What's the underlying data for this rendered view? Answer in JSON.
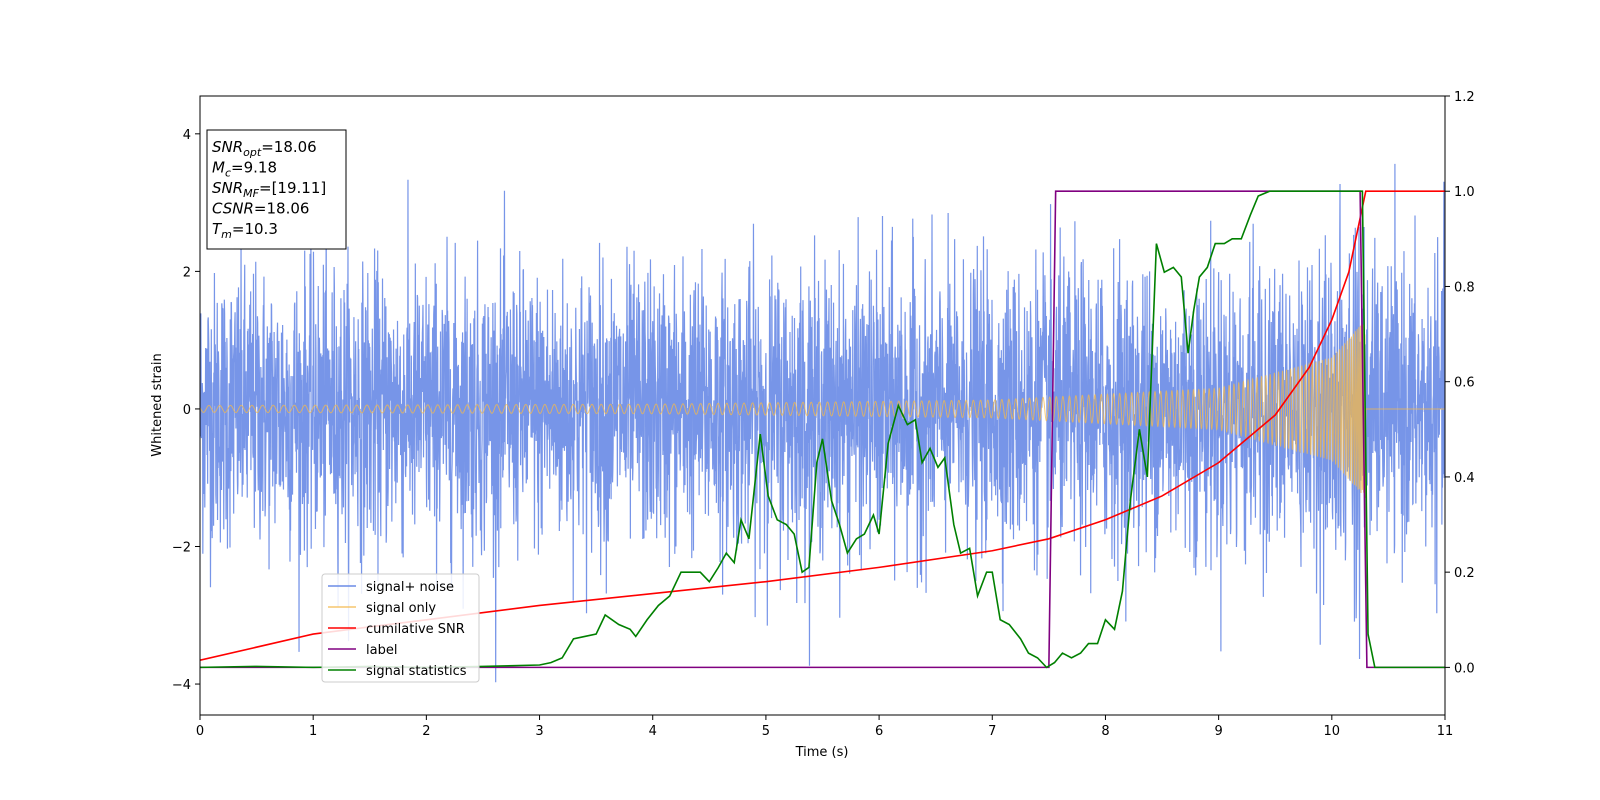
{
  "chart_data": {
    "type": "line",
    "xlabel": "Time (s)",
    "ylabel": "Whitened strain",
    "xlim": [
      0,
      11
    ],
    "ylim_left": [
      -4.45,
      4.55
    ],
    "ylim_right": [
      -0.1,
      1.2
    ],
    "xticks": [
      "0",
      "1",
      "2",
      "3",
      "4",
      "5",
      "6",
      "7",
      "8",
      "9",
      "10",
      "11"
    ],
    "yticks_left": [
      "4",
      "2",
      "0",
      "−2",
      "−4"
    ],
    "yticks_right": [
      "1.2",
      "1.0",
      "0.8",
      "0.6",
      "0.4",
      "0.2",
      "0.0"
    ],
    "legend_position": "lower-left",
    "annotation": {
      "lines": [
        {
          "sym": "SNR",
          "sub": "opt",
          "value": "=18.06"
        },
        {
          "sym": "M",
          "sub": "c",
          "value": "=9.18"
        },
        {
          "sym": "SNR",
          "sub": "MF",
          "value": "=[19.11]"
        },
        {
          "sym": "CSNR",
          "sub": "",
          "value": "=18.06"
        },
        {
          "sym": "T",
          "sub": "m",
          "value": "=10.3"
        }
      ]
    },
    "series": [
      {
        "name": "signal+ noise",
        "color": "#6b8ce6",
        "axis": "left",
        "description": "white noise std ~1 plus chirp, t 0–11"
      },
      {
        "name": "signal only",
        "color": "#f5b94a",
        "axis": "left",
        "chirp_amplitude": [
          [
            0,
            0.05
          ],
          [
            4,
            0.07
          ],
          [
            7,
            0.13
          ],
          [
            9,
            0.3
          ],
          [
            10,
            0.75
          ],
          [
            10.3,
            1.3
          ],
          [
            10.31,
            0
          ]
        ]
      },
      {
        "name": "cumilative SNR",
        "color": "#ff0000",
        "axis": "right",
        "x": [
          0,
          1,
          2,
          3,
          4,
          5,
          6,
          7,
          7.5,
          8,
          8.5,
          9,
          9.5,
          9.8,
          10,
          10.15,
          10.3,
          11
        ],
        "y": [
          0.015,
          0.07,
          0.1,
          0.13,
          0.155,
          0.18,
          0.21,
          0.245,
          0.27,
          0.31,
          0.36,
          0.43,
          0.53,
          0.63,
          0.73,
          0.83,
          1.0,
          1.0
        ]
      },
      {
        "name": "label",
        "color": "#800080",
        "axis": "right",
        "x": [
          0,
          7.5,
          7.56,
          10.25,
          10.31,
          11
        ],
        "y": [
          0,
          0,
          1,
          1,
          0,
          0
        ]
      },
      {
        "name": "signal statistics",
        "color": "#008000",
        "axis": "right",
        "x": [
          0,
          0.5,
          1,
          1.5,
          2,
          2.5,
          3,
          3.1,
          3.2,
          3.3,
          3.4,
          3.5,
          3.58,
          3.7,
          3.8,
          3.85,
          3.95,
          4.05,
          4.15,
          4.25,
          4.35,
          4.42,
          4.5,
          4.58,
          4.65,
          4.72,
          4.78,
          4.85,
          4.95,
          5.02,
          5.1,
          5.18,
          5.25,
          5.32,
          5.38,
          5.45,
          5.5,
          5.58,
          5.65,
          5.72,
          5.8,
          5.87,
          5.95,
          6.0,
          6.08,
          6.17,
          6.25,
          6.32,
          6.38,
          6.45,
          6.52,
          6.58,
          6.66,
          6.72,
          6.8,
          6.87,
          6.95,
          7.0,
          7.07,
          7.15,
          7.25,
          7.32,
          7.4,
          7.48,
          7.55,
          7.62,
          7.7,
          7.78,
          7.85,
          7.93,
          8.0,
          8.08,
          8.15,
          8.22,
          8.3,
          8.37,
          8.45,
          8.52,
          8.6,
          8.67,
          8.73,
          8.78,
          8.83,
          8.9,
          8.97,
          9.05,
          9.12,
          9.2,
          9.28,
          9.35,
          9.45,
          9.6,
          9.8,
          10.0,
          10.1,
          10.2,
          10.27,
          10.32,
          10.38,
          11
        ],
        "y": [
          0.0,
          0.002,
          0.0,
          0.002,
          0.0,
          0.002,
          0.005,
          0.01,
          0.02,
          0.06,
          0.065,
          0.07,
          0.11,
          0.09,
          0.08,
          0.065,
          0.1,
          0.13,
          0.15,
          0.2,
          0.2,
          0.2,
          0.18,
          0.21,
          0.24,
          0.22,
          0.31,
          0.27,
          0.49,
          0.36,
          0.31,
          0.3,
          0.28,
          0.2,
          0.21,
          0.43,
          0.48,
          0.35,
          0.3,
          0.24,
          0.27,
          0.28,
          0.32,
          0.28,
          0.47,
          0.55,
          0.51,
          0.52,
          0.43,
          0.46,
          0.42,
          0.44,
          0.3,
          0.24,
          0.25,
          0.15,
          0.2,
          0.2,
          0.1,
          0.09,
          0.06,
          0.03,
          0.02,
          0.0,
          0.01,
          0.03,
          0.02,
          0.03,
          0.05,
          0.05,
          0.1,
          0.08,
          0.16,
          0.35,
          0.5,
          0.4,
          0.89,
          0.83,
          0.84,
          0.82,
          0.66,
          0.75,
          0.82,
          0.84,
          0.89,
          0.89,
          0.9,
          0.9,
          0.95,
          0.99,
          1.0,
          1.0,
          1.0,
          1.0,
          1.0,
          1.0,
          1.0,
          0.07,
          0.0,
          0.0
        ]
      }
    ]
  }
}
